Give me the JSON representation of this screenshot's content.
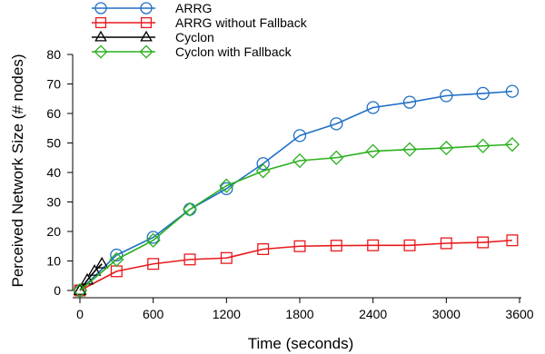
{
  "chart_data": {
    "type": "line",
    "title": "",
    "xlabel": "Time (seconds)",
    "ylabel": "Perceived Network Size (# nodes)",
    "xlim": [
      0,
      3600
    ],
    "ylim": [
      0,
      80
    ],
    "x_ticks": [
      0,
      600,
      1200,
      1800,
      2400,
      3000,
      3600
    ],
    "y_ticks": [
      0,
      10,
      20,
      30,
      40,
      50,
      60,
      70,
      80
    ],
    "grid": false,
    "legend_position": "top-left",
    "series": [
      {
        "name": "ARRG",
        "color": "#1f6fc4",
        "marker": "circle",
        "x": [
          0,
          300,
          600,
          900,
          1200,
          1500,
          1800,
          2100,
          2400,
          2700,
          3000,
          3300,
          3540
        ],
        "y": [
          0,
          12,
          18,
          27.5,
          34.5,
          43,
          52.5,
          56.5,
          62,
          63.8,
          66,
          66.8,
          67.5
        ]
      },
      {
        "name": "ARRG without Fallback",
        "color": "#e8191c",
        "marker": "square",
        "x": [
          0,
          300,
          600,
          900,
          1200,
          1500,
          1800,
          2100,
          2400,
          2700,
          3000,
          3300,
          3540
        ],
        "y": [
          0,
          6.5,
          9,
          10.5,
          11,
          14,
          15,
          15.2,
          15.3,
          15.3,
          16,
          16.3,
          17
        ]
      },
      {
        "name": "Cyclon",
        "color": "#000000",
        "marker": "triangle",
        "x": [
          0,
          60,
          120,
          180
        ],
        "y": [
          0,
          3.5,
          6.5,
          9
        ]
      },
      {
        "name": "Cyclon with Fallback",
        "color": "#2bb01f",
        "marker": "diamond",
        "x": [
          0,
          300,
          600,
          900,
          1200,
          1500,
          1800,
          2100,
          2400,
          2700,
          3000,
          3300,
          3540
        ],
        "y": [
          0,
          10.5,
          17,
          27.5,
          35.5,
          40.5,
          44,
          45,
          47.2,
          47.8,
          48.3,
          49,
          49.5
        ]
      }
    ]
  }
}
